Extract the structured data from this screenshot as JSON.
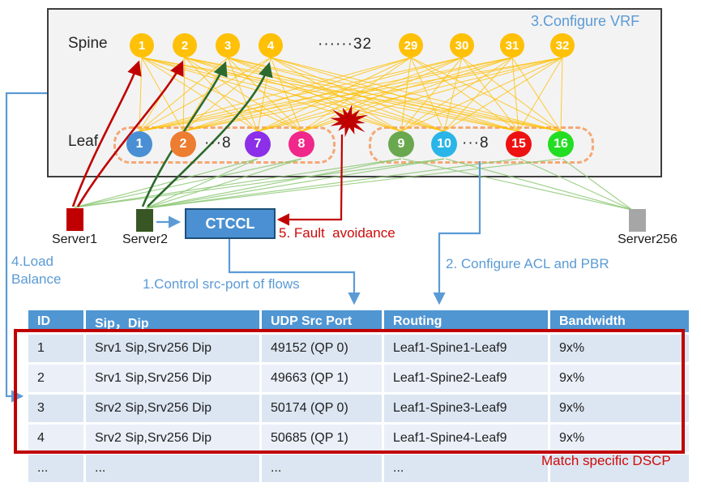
{
  "topology": {
    "spine_label": "Spine",
    "leaf_label": "Leaf",
    "spine_nodes": [
      "1",
      "2",
      "3",
      "4",
      "29",
      "30",
      "31",
      "32"
    ],
    "spine_ellipsis": "······32",
    "spine_node_color": "#FFC008",
    "leaf_left_nodes": [
      {
        "label": "1",
        "color": "#4a8fd3"
      },
      {
        "label": "2",
        "color": "#ed7d31"
      },
      {
        "label": "7",
        "color": "#8b2fe8"
      },
      {
        "label": "8",
        "color": "#f0288a"
      }
    ],
    "leaf_left_ellipsis": "···8",
    "leaf_right_nodes": [
      {
        "label": "9",
        "color": "#6aa84f"
      },
      {
        "label": "10",
        "color": "#29b5e8"
      },
      {
        "label": "15",
        "color": "#ee1111"
      },
      {
        "label": "16",
        "color": "#22dd22"
      }
    ],
    "leaf_right_ellipsis": "···8"
  },
  "servers": [
    {
      "name": "Server1",
      "color": "#c00000"
    },
    {
      "name": "Server2",
      "color": "#375623"
    },
    {
      "name": "Server256",
      "color": "#a6a6a6"
    }
  ],
  "controller_label": "CTCCL",
  "annotations": {
    "configure_vrf": "3.Configure VRF",
    "load_balance": "4.Load Balance",
    "control_src_port": "1.Control src-port of flows",
    "configure_acl": "2. Configure ACL and PBR",
    "fault_avoidance": "5. Fault  avoidance",
    "match_dscp": "Match specific DSCP"
  },
  "table": {
    "headers": [
      "ID",
      "Sip，Dip",
      "UDP Src Port",
      "Routing",
      "Bandwidth"
    ],
    "rows": [
      [
        "1",
        "Srv1 Sip,Srv256 Dip",
        "49152 (QP 0)",
        "Leaf1-Spine1-Leaf9",
        "9x%"
      ],
      [
        "2",
        "Srv1 Sip,Srv256 Dip",
        "49663 (QP 1)",
        "Leaf1-Spine2-Leaf9",
        "9x%"
      ],
      [
        "3",
        "Srv2 Sip,Srv256 Dip",
        "50174 (QP 0)",
        "Leaf1-Spine3-Leaf9",
        "9x%"
      ],
      [
        "4",
        "Srv2 Sip,Srv256 Dip",
        "50685 (QP 1)",
        "Leaf1-Spine4-Leaf9",
        "9x%"
      ],
      [
        "...",
        "...",
        "...",
        "...",
        ""
      ]
    ]
  },
  "colors": {
    "mesh_yellow": "#ffc008",
    "annotation_blue": "#5b9bd5",
    "alert_red": "#c00000",
    "flow_red": "#c00000",
    "flow_green": "#2d6a2d",
    "fan_green": "#90c978",
    "row_a": "#dce6f2",
    "row_b": "#eaeff8"
  }
}
